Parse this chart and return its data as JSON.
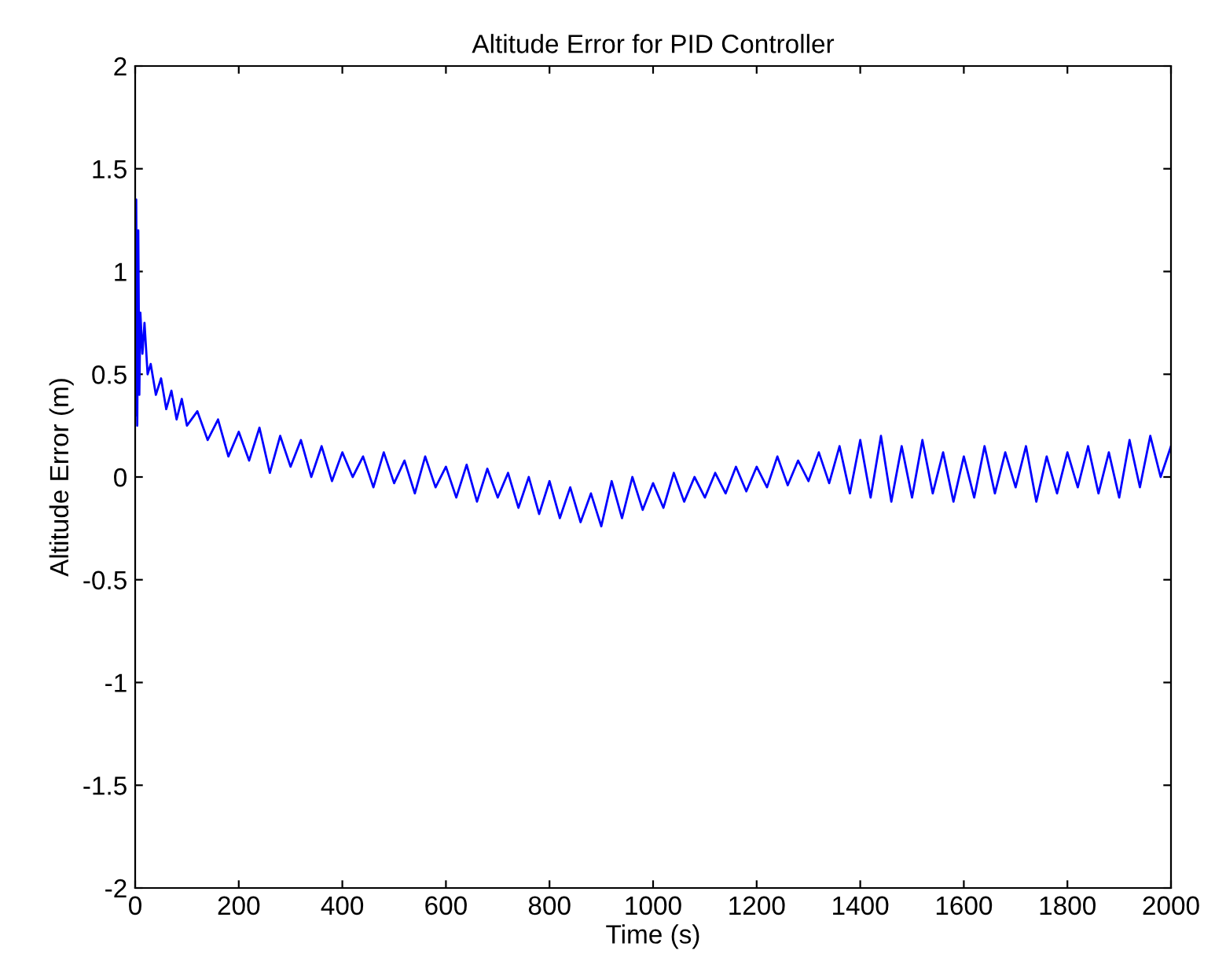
{
  "chart_data": {
    "type": "line",
    "title": "Altitude Error for PID Controller",
    "xlabel": "Time (s)",
    "ylabel": "Altitude Error (m)",
    "xlim": [
      0,
      2000
    ],
    "ylim": [
      -2,
      2
    ],
    "xticks": [
      0,
      200,
      400,
      600,
      800,
      1000,
      1200,
      1400,
      1600,
      1800,
      2000
    ],
    "yticks": [
      -2,
      -1.5,
      -1,
      -0.5,
      0,
      0.5,
      1,
      1.5,
      2
    ],
    "grid": false,
    "legend": false,
    "series": [
      {
        "color": "#0000ff",
        "x": [
          0,
          2,
          4,
          6,
          8,
          10,
          14,
          18,
          24,
          30,
          40,
          50,
          60,
          70,
          80,
          90,
          100,
          120,
          140,
          160,
          180,
          200,
          220,
          240,
          260,
          280,
          300,
          320,
          340,
          360,
          380,
          400,
          420,
          440,
          460,
          480,
          500,
          520,
          540,
          560,
          580,
          600,
          620,
          640,
          660,
          680,
          700,
          720,
          740,
          760,
          780,
          800,
          820,
          840,
          860,
          880,
          900,
          920,
          940,
          960,
          980,
          1000,
          1020,
          1040,
          1060,
          1080,
          1100,
          1120,
          1140,
          1160,
          1180,
          1200,
          1220,
          1240,
          1260,
          1280,
          1300,
          1320,
          1340,
          1360,
          1380,
          1400,
          1420,
          1440,
          1460,
          1480,
          1500,
          1520,
          1540,
          1560,
          1580,
          1600,
          1620,
          1640,
          1660,
          1680,
          1700,
          1720,
          1740,
          1760,
          1780,
          1800,
          1820,
          1840,
          1860,
          1880,
          1900,
          1920,
          1940,
          1960,
          1980,
          2000
        ],
        "values": [
          0.3,
          1.35,
          0.25,
          1.2,
          0.4,
          0.8,
          0.6,
          0.75,
          0.5,
          0.55,
          0.4,
          0.48,
          0.33,
          0.42,
          0.28,
          0.38,
          0.25,
          0.32,
          0.18,
          0.28,
          0.1,
          0.22,
          0.08,
          0.24,
          0.02,
          0.2,
          0.05,
          0.18,
          0.0,
          0.15,
          -0.02,
          0.12,
          0.0,
          0.1,
          -0.05,
          0.12,
          -0.03,
          0.08,
          -0.08,
          0.1,
          -0.05,
          0.05,
          -0.1,
          0.06,
          -0.12,
          0.04,
          -0.1,
          0.02,
          -0.15,
          0.0,
          -0.18,
          -0.02,
          -0.2,
          -0.05,
          -0.22,
          -0.08,
          -0.24,
          -0.02,
          -0.2,
          0.0,
          -0.16,
          -0.03,
          -0.15,
          0.02,
          -0.12,
          0.0,
          -0.1,
          0.02,
          -0.08,
          0.05,
          -0.07,
          0.05,
          -0.05,
          0.1,
          -0.04,
          0.08,
          -0.02,
          0.12,
          -0.03,
          0.15,
          -0.08,
          0.18,
          -0.1,
          0.2,
          -0.12,
          0.15,
          -0.1,
          0.18,
          -0.08,
          0.12,
          -0.12,
          0.1,
          -0.1,
          0.15,
          -0.08,
          0.12,
          -0.05,
          0.15,
          -0.12,
          0.1,
          -0.08,
          0.12,
          -0.05,
          0.15,
          -0.08,
          0.12,
          -0.1,
          0.18,
          -0.05,
          0.2,
          0.0,
          0.15
        ]
      }
    ]
  }
}
